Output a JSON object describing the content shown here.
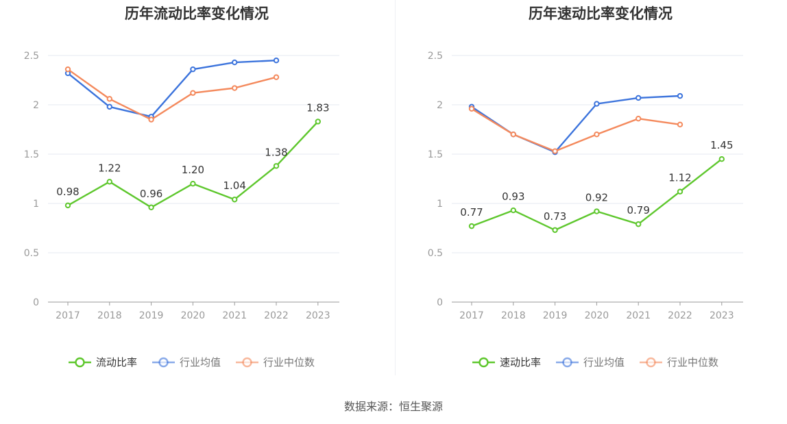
{
  "source_text": "数据来源：恒生聚源",
  "colors": {
    "company": "#5ec72d",
    "average": "#3b73dc",
    "median": "#f4895c",
    "grid": "#e4e8f0",
    "axis": "#999999",
    "label": "#333333"
  },
  "chart_data": [
    {
      "type": "line",
      "title": "历年流动比率变化情况",
      "categories": [
        "2017",
        "2018",
        "2019",
        "2020",
        "2021",
        "2022",
        "2023"
      ],
      "yticks": [
        "0",
        "0.5",
        "1",
        "1.5",
        "2",
        "2.5"
      ],
      "ylim": [
        0,
        2.5
      ],
      "grid": true,
      "legend_position": "bottom",
      "series": [
        {
          "name": "流动比率",
          "key": "company",
          "values": [
            0.98,
            1.22,
            0.96,
            1.2,
            1.04,
            1.38,
            1.83
          ],
          "labels": [
            "0.98",
            "1.22",
            "0.96",
            "1.20",
            "1.04",
            "1.38",
            "1.83"
          ]
        },
        {
          "name": "行业均值",
          "key": "average",
          "values": [
            2.32,
            1.98,
            1.88,
            2.36,
            2.43,
            2.45,
            null
          ]
        },
        {
          "name": "行业中位数",
          "key": "median",
          "values": [
            2.36,
            2.06,
            1.85,
            2.12,
            2.17,
            2.28,
            null
          ]
        }
      ]
    },
    {
      "type": "line",
      "title": "历年速动比率变化情况",
      "categories": [
        "2017",
        "2018",
        "2019",
        "2020",
        "2021",
        "2022",
        "2023"
      ],
      "yticks": [
        "0",
        "0.5",
        "1",
        "1.5",
        "2",
        "2.5"
      ],
      "ylim": [
        0,
        2.5
      ],
      "grid": true,
      "legend_position": "bottom",
      "series": [
        {
          "name": "速动比率",
          "key": "company",
          "values": [
            0.77,
            0.93,
            0.73,
            0.92,
            0.79,
            1.12,
            1.45
          ],
          "labels": [
            "0.77",
            "0.93",
            "0.73",
            "0.92",
            "0.79",
            "1.12",
            "1.45"
          ]
        },
        {
          "name": "行业均值",
          "key": "average",
          "values": [
            1.98,
            1.7,
            1.52,
            2.01,
            2.07,
            2.09,
            null
          ]
        },
        {
          "name": "行业中位数",
          "key": "median",
          "values": [
            1.96,
            1.7,
            1.53,
            1.7,
            1.86,
            1.8,
            null
          ]
        }
      ]
    }
  ]
}
